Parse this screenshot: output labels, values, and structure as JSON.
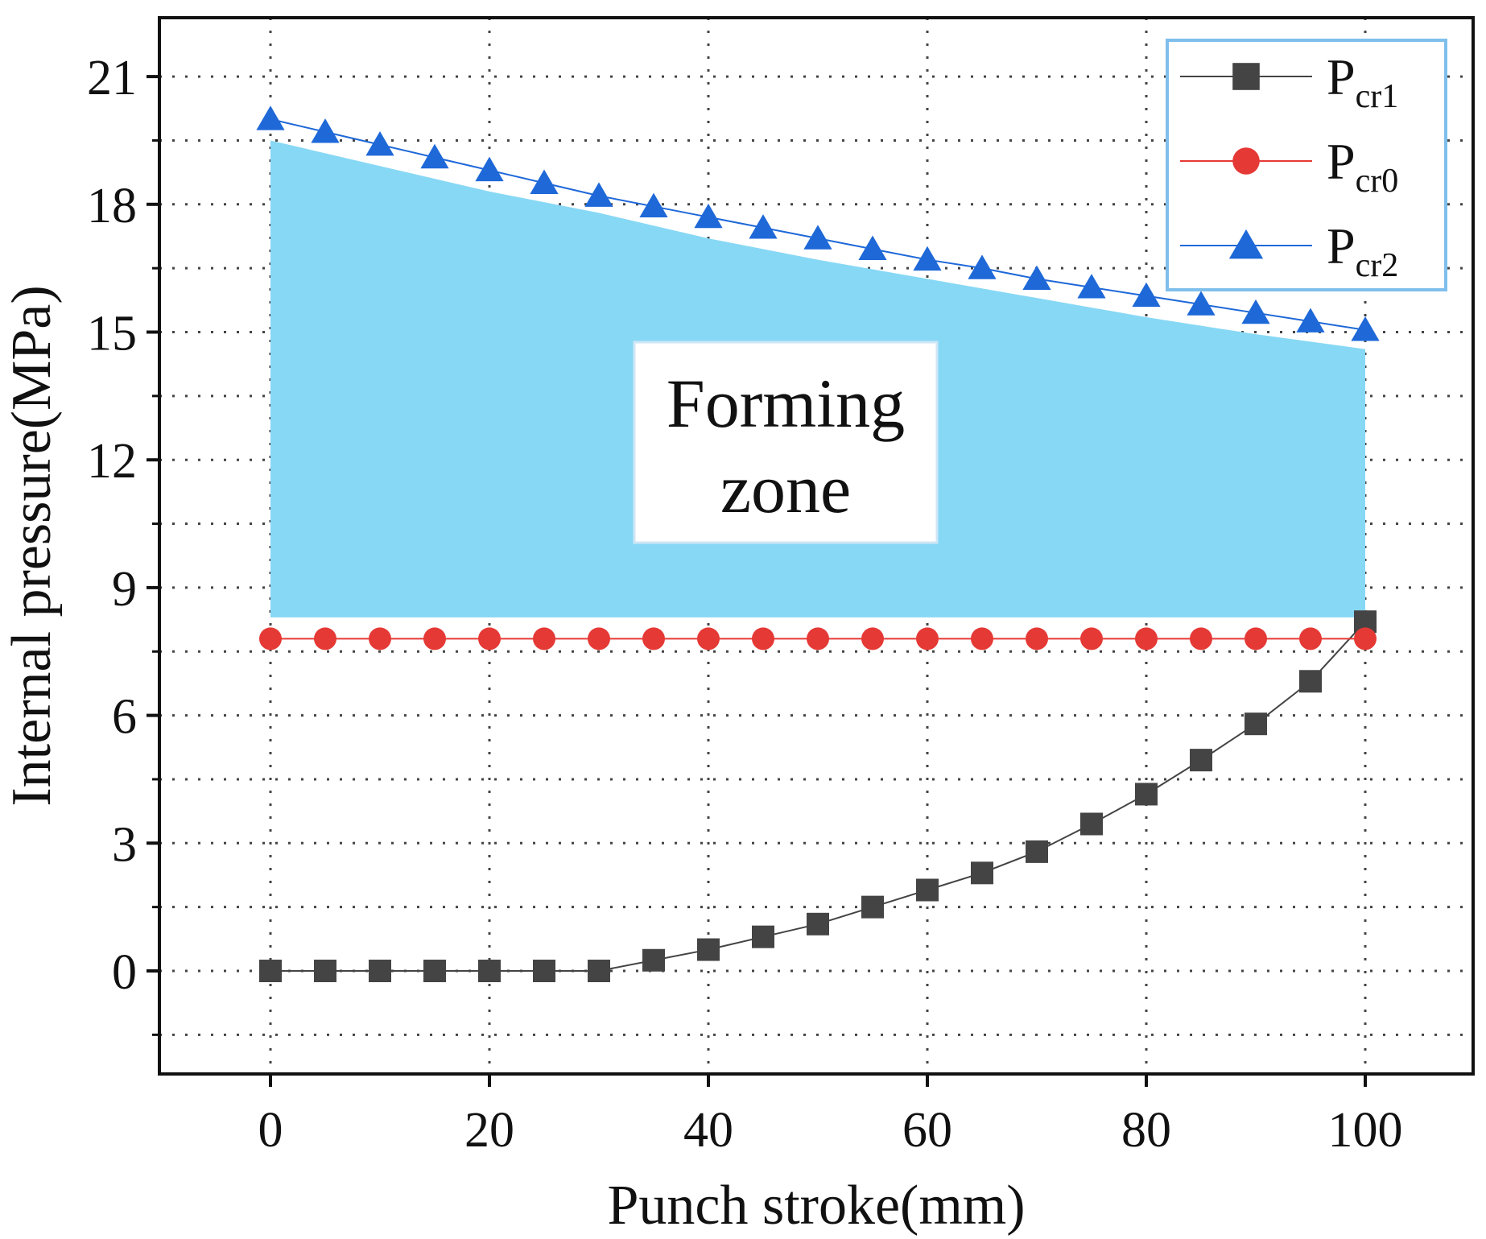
{
  "chart_data": {
    "type": "line",
    "title": "",
    "xlabel": "Punch stroke(mm)",
    "ylabel": "Internal pressure(MPa)",
    "xlim": [
      -10,
      110
    ],
    "ylim": [
      -3,
      22.5
    ],
    "x_ticks": [
      0,
      20,
      40,
      60,
      80,
      100
    ],
    "y_ticks": [
      0,
      3,
      6,
      9,
      12,
      15,
      18,
      21
    ],
    "y_minor_ticks": [
      -1.5,
      1.5,
      4.5,
      7.5,
      10.5,
      13.5,
      16.5,
      19.5
    ],
    "grid": true,
    "legend_position": "top-right",
    "x": [
      0,
      5,
      10,
      15,
      20,
      25,
      30,
      35,
      40,
      45,
      50,
      55,
      60,
      65,
      70,
      75,
      80,
      85,
      90,
      95,
      100
    ],
    "series": [
      {
        "name": "P",
        "subscript": "cr1",
        "marker": "square",
        "color": "#444444",
        "values": [
          0,
          0,
          0,
          0,
          0,
          0,
          0,
          0.25,
          0.5,
          0.8,
          1.1,
          1.5,
          1.9,
          2.3,
          2.8,
          3.45,
          4.15,
          4.95,
          5.8,
          6.8,
          8.2
        ]
      },
      {
        "name": "P",
        "subscript": "cr0",
        "marker": "circle",
        "color": "#e53935",
        "values": [
          7.8,
          7.8,
          7.8,
          7.8,
          7.8,
          7.8,
          7.8,
          7.8,
          7.8,
          7.8,
          7.8,
          7.8,
          7.8,
          7.8,
          7.8,
          7.8,
          7.8,
          7.8,
          7.8,
          7.8,
          7.8
        ]
      },
      {
        "name": "P",
        "subscript": "cr2",
        "marker": "triangle",
        "color": "#1e68d8",
        "values": [
          20,
          19.7,
          19.4,
          19.1,
          18.8,
          18.5,
          18.2,
          17.95,
          17.7,
          17.45,
          17.2,
          16.95,
          16.7,
          16.5,
          16.25,
          16.05,
          15.85,
          15.65,
          15.45,
          15.25,
          15.05
        ]
      }
    ],
    "zone": {
      "label_line1": "Forming",
      "label_line2": "zone",
      "color": "#87d8f5",
      "x": [
        0,
        10,
        20,
        30,
        40,
        50,
        60,
        70,
        80,
        90,
        100
      ],
      "upper": [
        19.5,
        18.9,
        18.3,
        17.8,
        17.2,
        16.7,
        16.25,
        15.8,
        15.35,
        14.95,
        14.6
      ],
      "lower": 8.3
    }
  }
}
